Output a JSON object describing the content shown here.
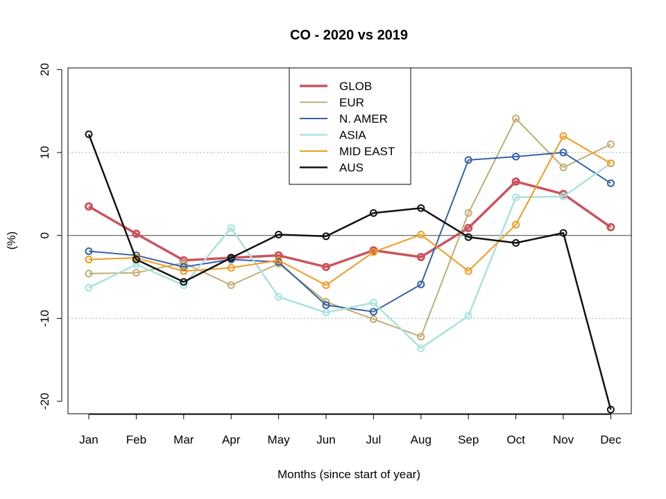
{
  "chart_data": {
    "type": "line",
    "title": "CO - 2020 vs 2019",
    "xlabel": "Months (since start of year)",
    "ylabel": "(%)",
    "categories": [
      "Jan",
      "Feb",
      "Mar",
      "Apr",
      "May",
      "Jun",
      "Jul",
      "Aug",
      "Sep",
      "Oct",
      "Nov",
      "Dec"
    ],
    "ylim": [
      -21.5,
      20.2
    ],
    "yticks": [
      -20,
      -10,
      0,
      10,
      20
    ],
    "gridlines_y": [
      -10,
      10
    ],
    "zero_line": 0,
    "legend_position": "top-center",
    "series": [
      {
        "name": "GLOB",
        "color": "#c9545e",
        "width": 3.5,
        "values": [
          3.5,
          0.2,
          -3.0,
          -2.7,
          -2.4,
          -3.8,
          -1.8,
          -2.6,
          0.9,
          6.5,
          5.0,
          1.0
        ]
      },
      {
        "name": "EUR",
        "color": "#bfad73",
        "width": 2,
        "values": [
          -4.6,
          -4.5,
          -3.3,
          -6.0,
          -3.4,
          -8.0,
          -10.1,
          -12.2,
          2.7,
          14.1,
          8.2,
          11.0
        ]
      },
      {
        "name": "N. AMER",
        "color": "#3461a8",
        "width": 2,
        "values": [
          -1.9,
          -2.4,
          -3.8,
          -2.9,
          -3.2,
          -8.4,
          -9.2,
          -5.9,
          9.1,
          9.5,
          10.0,
          6.3
        ]
      },
      {
        "name": "ASIA",
        "color": "#a8e3dd",
        "width": 2.5,
        "values": [
          -6.3,
          -3.5,
          -6.0,
          0.9,
          -7.4,
          -9.3,
          -8.1,
          -13.6,
          -9.7,
          4.6,
          4.7,
          8.7
        ]
      },
      {
        "name": "MID EAST",
        "color": "#f39a1e",
        "width": 2,
        "values": [
          -2.9,
          -2.7,
          -4.3,
          -3.9,
          -3.0,
          -6.0,
          -2.0,
          0.1,
          -4.3,
          1.3,
          12.0,
          8.7
        ]
      },
      {
        "name": "AUS",
        "color": "#111111",
        "width": 2.5,
        "values": [
          12.2,
          -2.9,
          -5.6,
          -2.7,
          0.1,
          -0.1,
          2.7,
          3.3,
          -0.2,
          -0.9,
          0.3,
          -21.0
        ]
      }
    ]
  }
}
